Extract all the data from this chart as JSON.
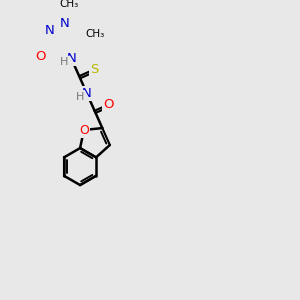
{
  "background_color": "#e8e8e8",
  "bond_color": "#000000",
  "atom_colors": {
    "O": "#ff0000",
    "N": "#0000cd",
    "S": "#b8b800",
    "C": "#000000",
    "H": "#777777"
  },
  "bond_width": 1.8,
  "font_size": 8.5,
  "figsize": [
    3.0,
    3.0
  ],
  "dpi": 100
}
